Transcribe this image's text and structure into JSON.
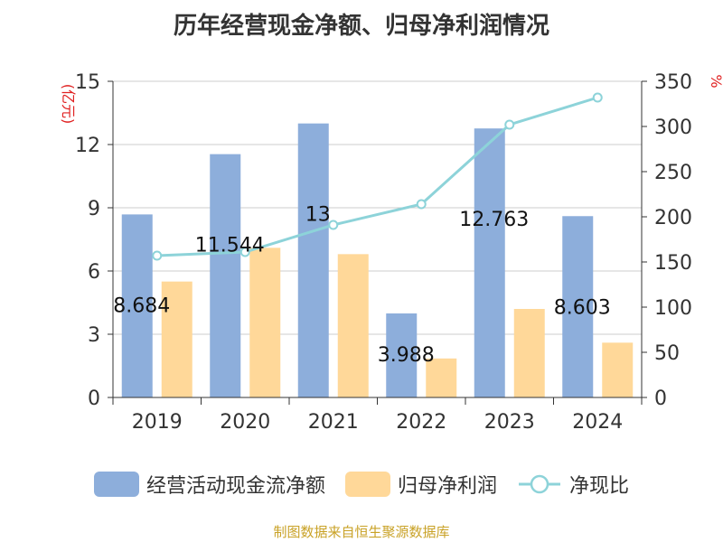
{
  "chart_data": {
    "type": "bar",
    "title": "历年经营现金净额、归母净利润情况",
    "categories": [
      "2019",
      "2020",
      "2021",
      "2022",
      "2023",
      "2024"
    ],
    "series": [
      {
        "name": "经营活动现金流净额",
        "type": "bar",
        "axis": "left",
        "color": "#8DAEDB",
        "values": [
          8.684,
          11.544,
          13.0,
          3.988,
          12.763,
          8.603
        ],
        "data_labels": [
          "8.684",
          "11.544",
          "13",
          "3.988",
          "12.763",
          "8.603"
        ]
      },
      {
        "name": "归母净利润",
        "type": "bar",
        "axis": "left",
        "color": "#FFD899",
        "values": [
          5.5,
          7.1,
          6.8,
          1.85,
          4.2,
          2.6
        ]
      },
      {
        "name": "净现比",
        "type": "line",
        "axis": "right",
        "color": "#8DD3D9",
        "values": [
          157,
          161,
          191,
          214,
          302,
          332
        ]
      }
    ],
    "y_left": {
      "label": "(亿元)",
      "ylim": [
        0,
        15
      ],
      "ticks": [
        "0",
        "3",
        "6",
        "9",
        "12",
        "15"
      ]
    },
    "y_right": {
      "label": "%",
      "ylim": [
        0,
        350
      ],
      "ticks": [
        "0",
        "50",
        "100",
        "150",
        "200",
        "250",
        "300",
        "350"
      ]
    },
    "grid": true,
    "legend_position": "bottom",
    "source": "制图数据来自恒生聚源数据库",
    "label_color": "#E02020"
  }
}
